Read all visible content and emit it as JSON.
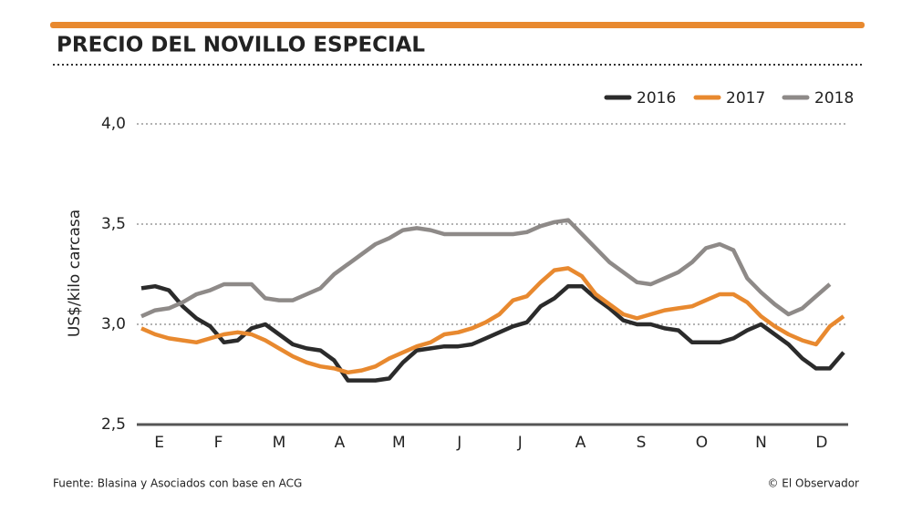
{
  "chart_data": {
    "type": "line",
    "title": "PRECIO DEL NOVILLO ESPECIAL",
    "y_label": "US$/kilo carcasa",
    "source": "Fuente: Blasina y Asociados con base en ACG",
    "credit": "© El Observador",
    "x": [
      1,
      2,
      3,
      4,
      5,
      6,
      7,
      8,
      9,
      10,
      11,
      12,
      13,
      14,
      15,
      16,
      17,
      18,
      19,
      20,
      21,
      22,
      23,
      24,
      25,
      26,
      27,
      28,
      29,
      30,
      31,
      32,
      33,
      34,
      35,
      36,
      37,
      38,
      39,
      40,
      41,
      42,
      43,
      44,
      45,
      46,
      47,
      48,
      49,
      50,
      51,
      52
    ],
    "xlim": [
      0.67,
      52.33
    ],
    "xticks": [
      {
        "value": 2.3,
        "label": "E"
      },
      {
        "value": 6.6,
        "label": "F"
      },
      {
        "value": 11,
        "label": "M"
      },
      {
        "value": 15.4,
        "label": "A"
      },
      {
        "value": 19.7,
        "label": "M"
      },
      {
        "value": 24.1,
        "label": "J"
      },
      {
        "value": 28.5,
        "label": "J"
      },
      {
        "value": 32.9,
        "label": "A"
      },
      {
        "value": 37.3,
        "label": "S"
      },
      {
        "value": 41.7,
        "label": "O"
      },
      {
        "value": 46,
        "label": "N"
      },
      {
        "value": 50.4,
        "label": "D"
      }
    ],
    "ylim": [
      2.5,
      4.0
    ],
    "yticks": [
      {
        "value": 2.5,
        "label": "2,5"
      },
      {
        "value": 3,
        "label": "3,0"
      },
      {
        "value": 3.5,
        "label": "3,5"
      },
      {
        "value": 4,
        "label": "4,0"
      }
    ],
    "grid": true,
    "legend": "top-right",
    "series": [
      {
        "name": "2016",
        "color": "#2b2b2b",
        "values": [
          3.18,
          3.19,
          3.17,
          3.09,
          3.03,
          2.99,
          2.91,
          2.92,
          2.98,
          3.0,
          2.95,
          2.9,
          2.88,
          2.87,
          2.82,
          2.72,
          2.72,
          2.72,
          2.73,
          2.81,
          2.87,
          2.88,
          2.89,
          2.89,
          2.9,
          2.93,
          2.96,
          2.99,
          3.01,
          3.09,
          3.13,
          3.19,
          3.19,
          3.13,
          3.08,
          3.02,
          3.0,
          3.0,
          2.98,
          2.97,
          2.91,
          2.91,
          2.91,
          2.93,
          2.97,
          3.0,
          2.95,
          2.9,
          2.83,
          2.78,
          2.78,
          2.86
        ]
      },
      {
        "name": "2017",
        "color": "#e8892f",
        "values": [
          2.98,
          2.95,
          2.93,
          2.92,
          2.91,
          2.93,
          2.95,
          2.96,
          2.95,
          2.92,
          2.88,
          2.84,
          2.81,
          2.79,
          2.78,
          2.76,
          2.77,
          2.79,
          2.83,
          2.86,
          2.89,
          2.91,
          2.95,
          2.96,
          2.98,
          3.01,
          3.05,
          3.12,
          3.14,
          3.21,
          3.27,
          3.28,
          3.24,
          3.15,
          3.1,
          3.05,
          3.03,
          3.05,
          3.07,
          3.08,
          3.09,
          3.12,
          3.15,
          3.15,
          3.11,
          3.04,
          2.99,
          2.95,
          2.92,
          2.9,
          2.99,
          3.04
        ]
      },
      {
        "name": "2018",
        "color": "#8e8a88",
        "values": [
          3.04,
          3.07,
          3.08,
          3.11,
          3.15,
          3.17,
          3.2,
          3.2,
          3.2,
          3.13,
          3.12,
          3.12,
          3.15,
          3.18,
          3.25,
          3.3,
          3.35,
          3.4,
          3.43,
          3.47,
          3.48,
          3.47,
          3.45,
          3.45,
          3.45,
          3.45,
          3.45,
          3.45,
          3.46,
          3.49,
          3.51,
          3.52,
          3.45,
          3.38,
          3.31,
          3.26,
          3.21,
          3.2,
          3.23,
          3.26,
          3.31,
          3.38,
          3.4,
          3.37,
          3.23,
          3.16,
          3.1,
          3.05,
          3.08,
          3.14,
          3.2,
          null
        ]
      }
    ]
  }
}
